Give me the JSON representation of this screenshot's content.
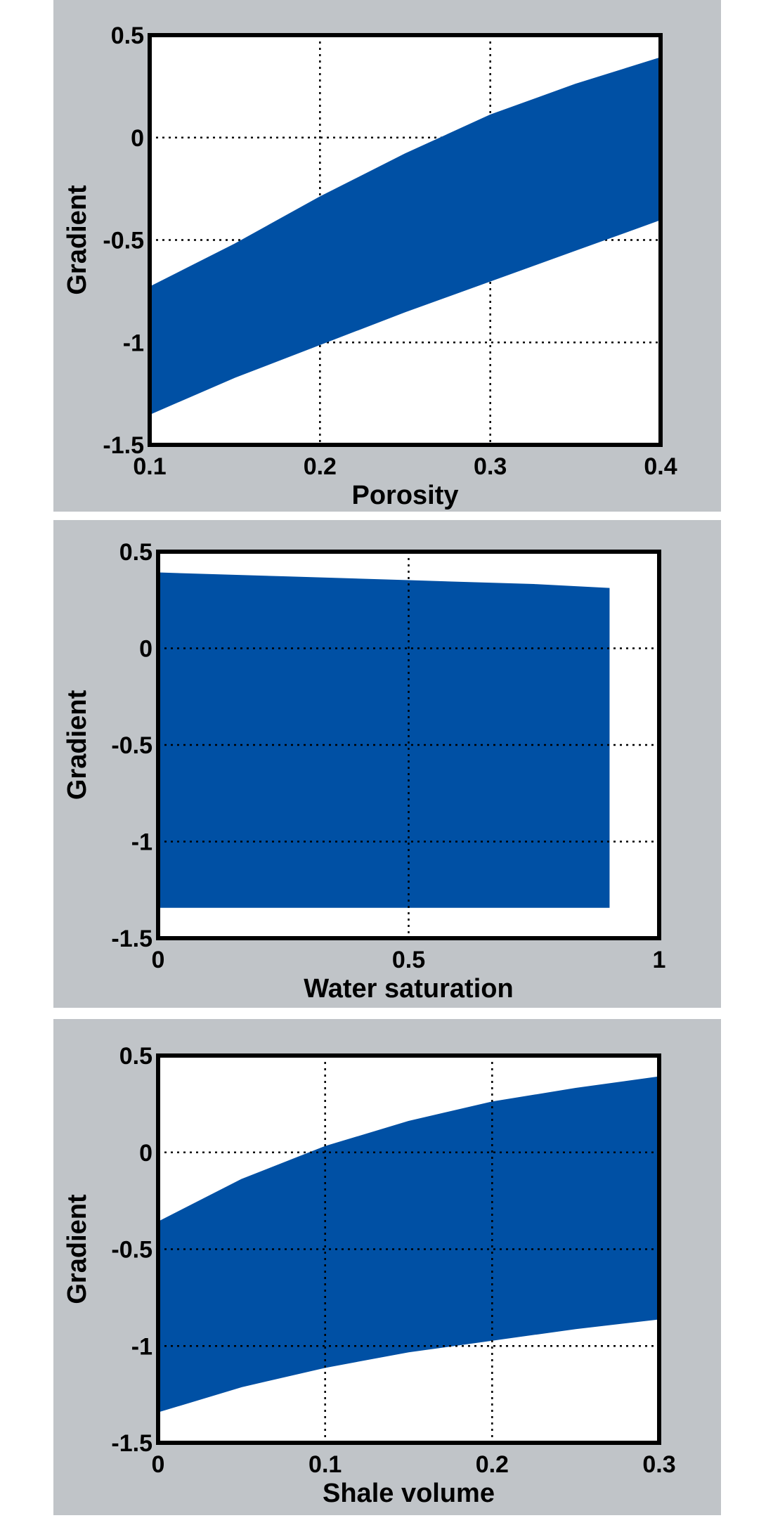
{
  "colors": {
    "fill": "#0050a4",
    "panel_bg": "#c0c4c8",
    "axes_bg": "#ffffff"
  },
  "chart_data": [
    {
      "type": "area",
      "title": "",
      "xlabel": "Porosity",
      "ylabel": "Gradient",
      "xlim": [
        0.1,
        0.4
      ],
      "ylim": [
        -1.5,
        0.5
      ],
      "xticks": [
        0.1,
        0.2,
        0.3,
        0.4
      ],
      "xtick_labels": [
        "0.1",
        "0.2",
        "0.3",
        "0.4"
      ],
      "yticks": [
        0.5,
        0,
        -0.5,
        -1,
        -1.5
      ],
      "ytick_labels": [
        "0.5",
        "0",
        "-0.5",
        "-1",
        "-1.5"
      ],
      "grid": true,
      "series": [
        {
          "name": "upper",
          "x": [
            0.1,
            0.15,
            0.2,
            0.25,
            0.3,
            0.35,
            0.4
          ],
          "values": [
            -0.73,
            -0.52,
            -0.29,
            -0.08,
            0.11,
            0.26,
            0.39
          ]
        },
        {
          "name": "lower",
          "x": [
            0.1,
            0.15,
            0.2,
            0.25,
            0.3,
            0.35,
            0.4
          ],
          "values": [
            -1.35,
            -1.17,
            -1.01,
            -0.85,
            -0.7,
            -0.55,
            -0.4
          ]
        }
      ]
    },
    {
      "type": "area",
      "title": "",
      "xlabel": "Water saturation",
      "ylabel": "Gradient",
      "xlim": [
        0,
        1
      ],
      "ylim": [
        -1.5,
        0.5
      ],
      "xticks": [
        0,
        0.5,
        1
      ],
      "xtick_labels": [
        "0",
        "0.5",
        "1"
      ],
      "yticks": [
        0.5,
        0,
        -0.5,
        -1,
        -1.5
      ],
      "ytick_labels": [
        "0.5",
        "0",
        "-0.5",
        "-1",
        "-1.5"
      ],
      "grid": true,
      "series": [
        {
          "name": "upper",
          "x": [
            0,
            0.25,
            0.5,
            0.75,
            0.9
          ],
          "values": [
            0.39,
            0.37,
            0.35,
            0.33,
            0.31
          ]
        },
        {
          "name": "lower",
          "x": [
            0,
            0.25,
            0.5,
            0.75,
            0.9
          ],
          "values": [
            -1.34,
            -1.34,
            -1.34,
            -1.34,
            -1.34
          ]
        }
      ]
    },
    {
      "type": "area",
      "title": "",
      "xlabel": "Shale volume",
      "ylabel": "Gradient",
      "xlim": [
        0,
        0.3
      ],
      "ylim": [
        -1.5,
        0.5
      ],
      "xticks": [
        0,
        0.1,
        0.2,
        0.3
      ],
      "xtick_labels": [
        "0",
        "0.1",
        "0.2",
        "0.3"
      ],
      "yticks": [
        0.5,
        0,
        -0.5,
        -1,
        -1.5
      ],
      "ytick_labels": [
        "0.5",
        "0",
        "-0.5",
        "-1",
        "-1.5"
      ],
      "grid": true,
      "series": [
        {
          "name": "upper",
          "x": [
            0,
            0.05,
            0.1,
            0.15,
            0.2,
            0.25,
            0.3
          ],
          "values": [
            -0.36,
            -0.14,
            0.03,
            0.16,
            0.26,
            0.33,
            0.39
          ]
        },
        {
          "name": "lower",
          "x": [
            0,
            0.05,
            0.1,
            0.15,
            0.2,
            0.25,
            0.3
          ],
          "values": [
            -1.34,
            -1.21,
            -1.11,
            -1.03,
            -0.97,
            -0.91,
            -0.86
          ]
        }
      ]
    }
  ]
}
